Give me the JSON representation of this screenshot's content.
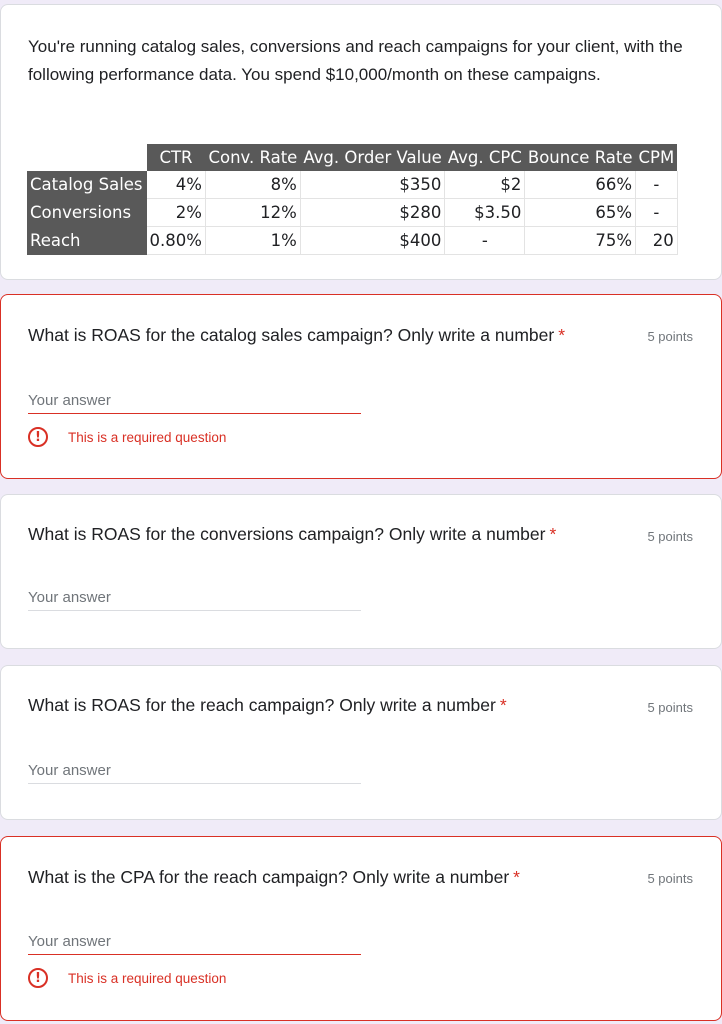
{
  "intro": {
    "text": "You're running catalog sales, conversions and reach campaigns for your client, with the following performance data. You spend $10,000/month on these campaigns."
  },
  "table": {
    "headers": [
      "",
      "CTR",
      "Conv. Rate",
      "Avg. Order Value",
      "Avg. CPC",
      "Bounce Rate",
      "CPM"
    ],
    "rows": [
      {
        "label": "Catalog Sales",
        "cells": [
          "4%",
          "8%",
          "$350",
          "$2",
          "66%",
          "-"
        ]
      },
      {
        "label": "Conversions",
        "cells": [
          "2%",
          "12%",
          "$280",
          "$3.50",
          "65%",
          "-"
        ]
      },
      {
        "label": "Reach",
        "cells": [
          "0.80%",
          "1%",
          "$400",
          "-",
          "75%",
          "20"
        ]
      }
    ]
  },
  "questions": [
    {
      "title": "What is ROAS for the catalog sales campaign? Only write a number",
      "required_mark": "*",
      "points": "5 points",
      "placeholder": "Your answer",
      "error": "This is a required question"
    },
    {
      "title": "What is ROAS for the conversions campaign? Only write a number",
      "required_mark": "*",
      "points": "5 points",
      "placeholder": "Your answer"
    },
    {
      "title": "What is ROAS for the reach campaign? Only write a number",
      "required_mark": "*",
      "points": "5 points",
      "placeholder": "Your answer"
    },
    {
      "title": "What is the CPA for the reach campaign? Only write a number",
      "required_mark": "*",
      "points": "5 points",
      "placeholder": "Your answer",
      "error": "This is a required question"
    }
  ],
  "colors": {
    "error": "#d93025",
    "background": "#f0ebf8",
    "table_header": "#595959"
  },
  "icons": {
    "error": "error-circle-icon"
  }
}
